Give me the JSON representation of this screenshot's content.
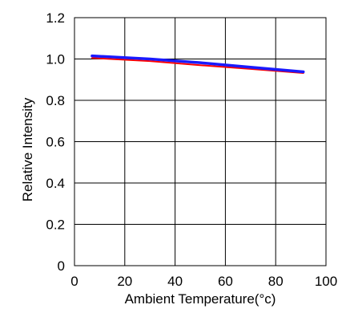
{
  "chart_data": {
    "type": "line",
    "xlabel": "Ambient Temperature(°c)",
    "ylabel": "Relative Intensity",
    "xlim": [
      0,
      100
    ],
    "ylim": [
      0,
      1.2
    ],
    "xticks": [
      0,
      20,
      40,
      60,
      80,
      100
    ],
    "yticks": [
      0,
      0.2,
      0.4,
      0.6,
      0.8,
      1.0,
      1.2
    ],
    "xtick_labels": [
      "0",
      "20",
      "40",
      "60",
      "80",
      "100"
    ],
    "ytick_labels": [
      "0",
      "0.2",
      "0.4",
      "0.6",
      "0.8",
      "1.0",
      "1.2"
    ],
    "grid": true,
    "series": [
      {
        "color": "#ff0000",
        "x": [
          7,
          30,
          50,
          70,
          91
        ],
        "y": [
          1.005,
          0.99,
          0.97,
          0.952,
          0.932
        ]
      },
      {
        "color": "#1a1aff",
        "x": [
          7,
          30,
          50,
          70,
          91
        ],
        "y": [
          1.015,
          1.0,
          0.982,
          0.96,
          0.938
        ]
      }
    ]
  }
}
